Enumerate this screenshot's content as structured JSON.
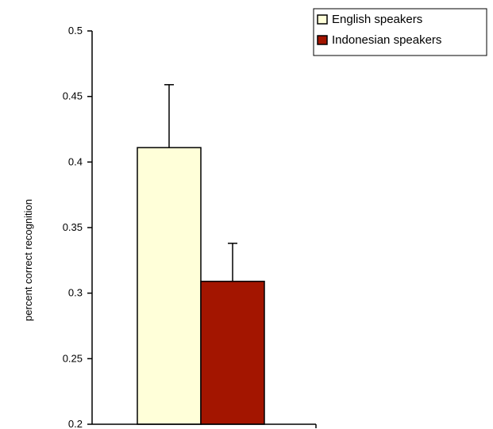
{
  "chart_data": {
    "type": "bar",
    "title": "",
    "xlabel": "",
    "ylabel": "percent correct recognition",
    "ylim": [
      0.2,
      0.5
    ],
    "yticks": [
      0.2,
      0.25,
      0.3,
      0.35,
      0.4,
      0.45,
      0.5
    ],
    "ytick_labels": [
      "0.2",
      "0.25",
      "0.3",
      "0.35",
      "0.4",
      "0.45",
      "0.5"
    ],
    "grid": false,
    "legend_position": "top-right",
    "series": [
      {
        "name": "English speakers",
        "value": 0.411,
        "error": 0.048,
        "color": "#FFFFD9"
      },
      {
        "name": "Indonesian speakers",
        "value": 0.309,
        "error": 0.029,
        "color": "#A31500"
      }
    ]
  }
}
